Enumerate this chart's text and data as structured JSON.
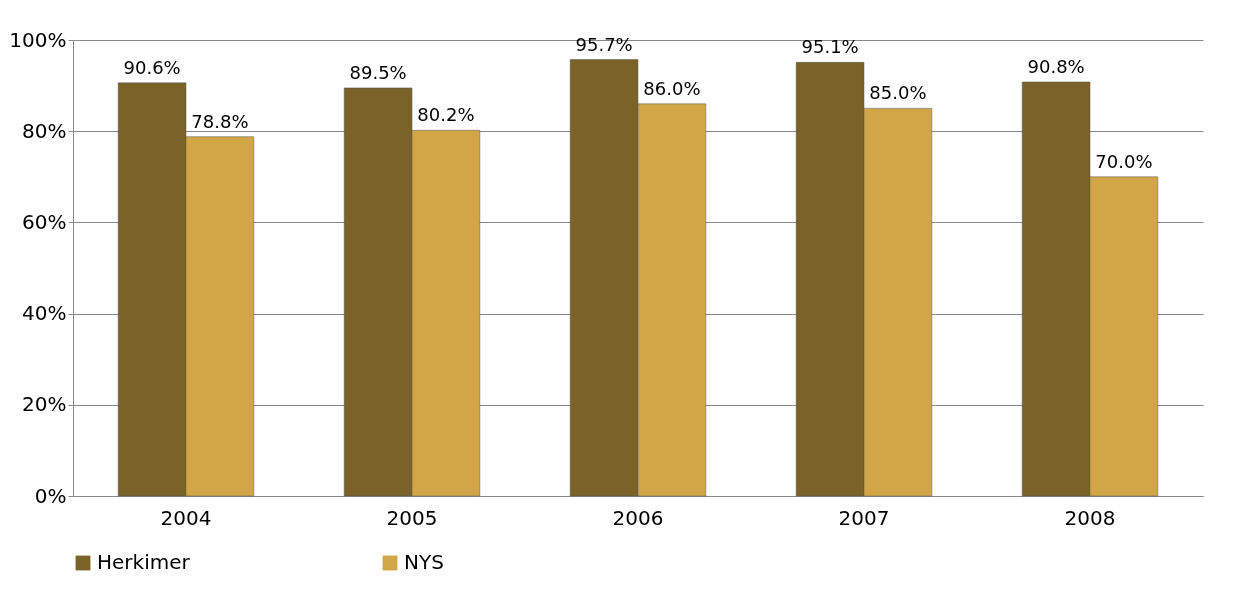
{
  "chart_data": {
    "type": "bar",
    "categories": [
      "2004",
      "2005",
      "2006",
      "2007",
      "2008"
    ],
    "series": [
      {
        "name": "Herkimer",
        "color": "#7b6229",
        "values": [
          90.6,
          89.5,
          95.7,
          95.1,
          90.8
        ],
        "value_labels": [
          "90.6%",
          "89.5%",
          "95.7%",
          "95.1%",
          "90.8%"
        ]
      },
      {
        "name": "NYS",
        "color": "#d2a647",
        "values": [
          78.8,
          80.2,
          86.0,
          85.0,
          70.0
        ],
        "value_labels": [
          "78.8%",
          "80.2%",
          "86.0%",
          "85.0%",
          "70.0%"
        ]
      }
    ],
    "ylim": [
      0,
      100
    ],
    "yticks": [
      {
        "value": 0,
        "label": "0%"
      },
      {
        "value": 20,
        "label": "20%"
      },
      {
        "value": 40,
        "label": "40%"
      },
      {
        "value": 60,
        "label": "60%"
      },
      {
        "value": 80,
        "label": "80%"
      },
      {
        "value": 100,
        "label": "100%"
      }
    ],
    "grid": "y",
    "legend": "bottom"
  }
}
